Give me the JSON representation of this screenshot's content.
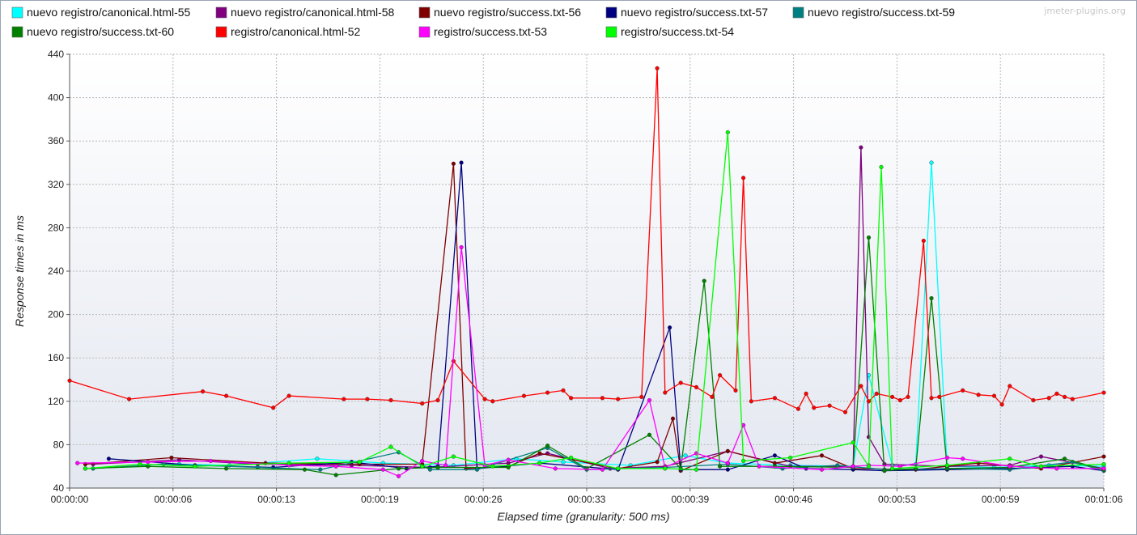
{
  "watermark": "jmeter-plugins.org",
  "chart_data": {
    "type": "line",
    "xlabel": "Elapsed time (granularity: 500 ms)",
    "ylabel": "Response times in ms",
    "ylim": [
      40,
      440
    ],
    "yticks": [
      40,
      80,
      120,
      160,
      200,
      240,
      280,
      320,
      360,
      400,
      440
    ],
    "xlim_seconds": [
      0,
      66
    ],
    "xticks": [
      {
        "t": 0,
        "label": "00:00:00"
      },
      {
        "t": 6.6,
        "label": "00:00:06"
      },
      {
        "t": 13.2,
        "label": "00:00:13"
      },
      {
        "t": 19.8,
        "label": "00:00:19"
      },
      {
        "t": 26.4,
        "label": "00:00:26"
      },
      {
        "t": 33.0,
        "label": "00:00:33"
      },
      {
        "t": 39.6,
        "label": "00:00:39"
      },
      {
        "t": 46.2,
        "label": "00:00:46"
      },
      {
        "t": 52.8,
        "label": "00:00:53"
      },
      {
        "t": 59.4,
        "label": "00:00:59"
      },
      {
        "t": 66.0,
        "label": "00:01:06"
      }
    ],
    "grid": true,
    "legend_position": "top",
    "series": [
      {
        "name": "nuevo registro/canonical.html-55",
        "color": "#00ffff",
        "points": [
          [
            7.0,
            62
          ],
          [
            10.2,
            61
          ],
          [
            15.8,
            67
          ],
          [
            20.0,
            63
          ],
          [
            24.5,
            61
          ],
          [
            28.5,
            67
          ],
          [
            31.5,
            64
          ],
          [
            35.8,
            61
          ],
          [
            39.3,
            70
          ],
          [
            42.0,
            63
          ],
          [
            46.0,
            61
          ],
          [
            50.0,
            60
          ],
          [
            51.0,
            144
          ],
          [
            52.5,
            61
          ],
          [
            54.0,
            62
          ],
          [
            55.0,
            340
          ],
          [
            56.0,
            60
          ],
          [
            59.0,
            59
          ],
          [
            62.5,
            61
          ],
          [
            66.0,
            60
          ]
        ]
      },
      {
        "name": "nuevo registro/canonical.html-58",
        "color": "#800080",
        "points": [
          [
            1.5,
            62
          ],
          [
            7.0,
            66
          ],
          [
            12.0,
            62
          ],
          [
            18.0,
            61
          ],
          [
            23.0,
            59
          ],
          [
            28.0,
            63
          ],
          [
            30.5,
            72
          ],
          [
            34.5,
            58
          ],
          [
            38.0,
            60
          ],
          [
            42.0,
            74
          ],
          [
            46.0,
            60
          ],
          [
            50.0,
            60
          ],
          [
            50.5,
            354
          ],
          [
            51.0,
            87
          ],
          [
            52.0,
            62
          ],
          [
            56.0,
            60
          ],
          [
            60.0,
            61
          ],
          [
            62.0,
            69
          ],
          [
            66.0,
            58
          ]
        ]
      },
      {
        "name": "nuevo registro/success.txt-56",
        "color": "#800000",
        "points": [
          [
            1.0,
            62
          ],
          [
            6.5,
            68
          ],
          [
            12.5,
            63
          ],
          [
            18.5,
            62
          ],
          [
            22.5,
            62
          ],
          [
            24.5,
            339
          ],
          [
            25.3,
            58
          ],
          [
            28.0,
            60
          ],
          [
            30.0,
            72
          ],
          [
            35.0,
            58
          ],
          [
            37.5,
            64
          ],
          [
            38.5,
            104
          ],
          [
            39.0,
            56
          ],
          [
            42.0,
            74
          ],
          [
            45.0,
            63
          ],
          [
            48.0,
            70
          ],
          [
            50.0,
            58
          ],
          [
            54.0,
            57
          ],
          [
            58.0,
            63
          ],
          [
            62.0,
            58
          ],
          [
            66.0,
            69
          ]
        ]
      },
      {
        "name": "nuevo registro/success.txt-57",
        "color": "#000080",
        "points": [
          [
            2.5,
            67
          ],
          [
            8.0,
            61
          ],
          [
            13.0,
            59
          ],
          [
            18.0,
            64
          ],
          [
            21.5,
            58
          ],
          [
            23.5,
            60
          ],
          [
            25.0,
            340
          ],
          [
            26.0,
            58
          ],
          [
            30.0,
            63
          ],
          [
            35.0,
            57
          ],
          [
            38.3,
            188
          ],
          [
            39.0,
            57
          ],
          [
            42.0,
            57
          ],
          [
            45.0,
            70
          ],
          [
            47.0,
            58
          ],
          [
            50.0,
            57
          ],
          [
            52.0,
            56
          ],
          [
            56.0,
            57
          ],
          [
            60.0,
            58
          ],
          [
            64.0,
            60
          ],
          [
            66.0,
            56
          ]
        ]
      },
      {
        "name": "nuevo registro/success.txt-59",
        "color": "#008080",
        "points": [
          [
            1.5,
            58
          ],
          [
            6.0,
            62
          ],
          [
            12.0,
            59
          ],
          [
            16.0,
            57
          ],
          [
            21.0,
            73
          ],
          [
            23.0,
            57
          ],
          [
            26.0,
            57
          ],
          [
            30.5,
            77
          ],
          [
            33.0,
            57
          ],
          [
            38.0,
            59
          ],
          [
            42.0,
            62
          ],
          [
            45.5,
            58
          ],
          [
            49.0,
            61
          ],
          [
            52.0,
            57
          ],
          [
            56.0,
            58
          ],
          [
            60.0,
            57
          ],
          [
            64.0,
            64
          ],
          [
            66.0,
            56
          ]
        ]
      },
      {
        "name": "nuevo registro/success.txt-60",
        "color": "#008000",
        "points": [
          [
            1.0,
            58
          ],
          [
            5.0,
            60
          ],
          [
            10.0,
            58
          ],
          [
            15.0,
            57
          ],
          [
            17.0,
            52
          ],
          [
            21.0,
            58
          ],
          [
            23.5,
            59
          ],
          [
            28.0,
            59
          ],
          [
            30.5,
            79
          ],
          [
            33.0,
            58
          ],
          [
            37.0,
            89
          ],
          [
            39.0,
            58
          ],
          [
            40.5,
            231
          ],
          [
            41.5,
            60
          ],
          [
            45.0,
            60
          ],
          [
            50.0,
            59
          ],
          [
            51.0,
            271
          ],
          [
            52.0,
            56
          ],
          [
            54.0,
            58
          ],
          [
            55.0,
            215
          ],
          [
            56.0,
            58
          ],
          [
            60.0,
            59
          ],
          [
            63.5,
            67
          ],
          [
            66.0,
            57
          ]
        ]
      },
      {
        "name": "registro/canonical.html-52",
        "color": "#ff0000",
        "points": [
          [
            0.0,
            139
          ],
          [
            3.8,
            122
          ],
          [
            8.5,
            129
          ],
          [
            10.0,
            125
          ],
          [
            13.0,
            114
          ],
          [
            14.0,
            125
          ],
          [
            17.5,
            122
          ],
          [
            19.0,
            122
          ],
          [
            20.5,
            121
          ],
          [
            22.5,
            118
          ],
          [
            23.5,
            121
          ],
          [
            24.5,
            157
          ],
          [
            26.5,
            122
          ],
          [
            27.0,
            120
          ],
          [
            29.0,
            125
          ],
          [
            30.5,
            128
          ],
          [
            31.5,
            130
          ],
          [
            32.0,
            123
          ],
          [
            34.0,
            123
          ],
          [
            35.0,
            122
          ],
          [
            36.5,
            124
          ],
          [
            37.5,
            427
          ],
          [
            38.0,
            128
          ],
          [
            39.0,
            137
          ],
          [
            40.0,
            133
          ],
          [
            41.0,
            124
          ],
          [
            41.5,
            144
          ],
          [
            42.5,
            130
          ],
          [
            43.0,
            326
          ],
          [
            43.5,
            120
          ],
          [
            45.0,
            123
          ],
          [
            46.5,
            113
          ],
          [
            47.0,
            127
          ],
          [
            47.5,
            114
          ],
          [
            48.5,
            116
          ],
          [
            49.5,
            110
          ],
          [
            50.5,
            134
          ],
          [
            51.0,
            120
          ],
          [
            51.5,
            127
          ],
          [
            52.5,
            124
          ],
          [
            53.0,
            121
          ],
          [
            53.5,
            124
          ],
          [
            54.5,
            268
          ],
          [
            55.0,
            123
          ],
          [
            55.5,
            124
          ],
          [
            57.0,
            130
          ],
          [
            58.0,
            126
          ],
          [
            59.0,
            125
          ],
          [
            59.5,
            117
          ],
          [
            60.0,
            134
          ],
          [
            61.5,
            121
          ],
          [
            62.5,
            123
          ],
          [
            63.0,
            127
          ],
          [
            63.5,
            124
          ],
          [
            64.0,
            122
          ],
          [
            66.0,
            128
          ]
        ]
      },
      {
        "name": "registro/success.txt-53",
        "color": "#ff00ff",
        "points": [
          [
            0.5,
            63
          ],
          [
            5.0,
            64
          ],
          [
            9.0,
            65
          ],
          [
            14.0,
            61
          ],
          [
            17.0,
            60
          ],
          [
            20.0,
            57
          ],
          [
            21.0,
            51
          ],
          [
            22.5,
            65
          ],
          [
            24.0,
            61
          ],
          [
            25.0,
            262
          ],
          [
            26.5,
            61
          ],
          [
            28.0,
            66
          ],
          [
            31.0,
            58
          ],
          [
            34.0,
            57
          ],
          [
            37.0,
            121
          ],
          [
            38.0,
            59
          ],
          [
            40.0,
            72
          ],
          [
            42.0,
            63
          ],
          [
            43.0,
            98
          ],
          [
            44.0,
            60
          ],
          [
            48.0,
            57
          ],
          [
            50.0,
            60
          ],
          [
            51.0,
            61
          ],
          [
            53.0,
            60
          ],
          [
            56.0,
            68
          ],
          [
            57.0,
            67
          ],
          [
            60.0,
            60
          ],
          [
            63.0,
            58
          ],
          [
            66.0,
            58
          ]
        ]
      },
      {
        "name": "registro/success.txt-54",
        "color": "#00ff00",
        "points": [
          [
            1.0,
            58
          ],
          [
            4.5,
            62
          ],
          [
            8.0,
            60
          ],
          [
            14.0,
            63
          ],
          [
            18.5,
            64
          ],
          [
            20.5,
            78
          ],
          [
            22.5,
            60
          ],
          [
            24.5,
            69
          ],
          [
            27.0,
            60
          ],
          [
            30.0,
            63
          ],
          [
            32.0,
            68
          ],
          [
            35.0,
            58
          ],
          [
            38.0,
            58
          ],
          [
            40.0,
            57
          ],
          [
            42.0,
            368
          ],
          [
            43.0,
            65
          ],
          [
            46.0,
            68
          ],
          [
            50.0,
            82
          ],
          [
            51.0,
            60
          ],
          [
            51.8,
            336
          ],
          [
            52.5,
            58
          ],
          [
            56.0,
            61
          ],
          [
            60.0,
            67
          ],
          [
            62.0,
            60
          ],
          [
            66.0,
            62
          ]
        ]
      }
    ]
  }
}
